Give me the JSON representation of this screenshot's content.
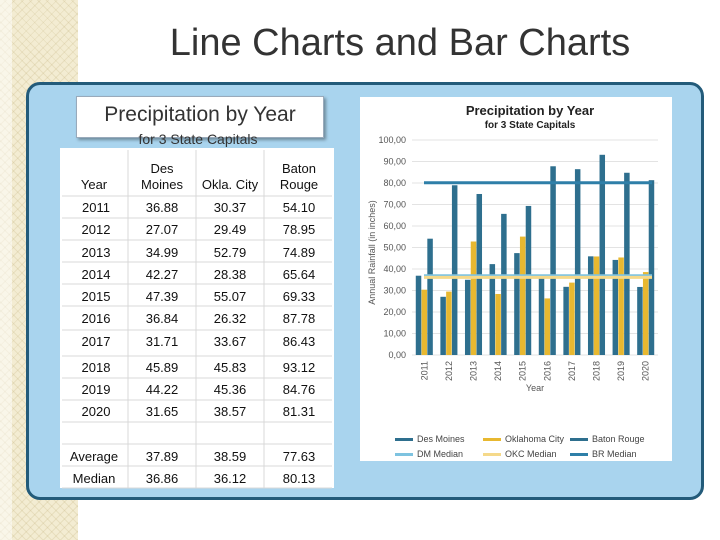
{
  "slide": {
    "title": "Line Charts and Bar Charts"
  },
  "table": {
    "title": "Precipitation by Year",
    "subtitle": "for 3 State Capitals",
    "headers": [
      "Year",
      "Des Moines",
      "Okla. City",
      "Baton Rouge"
    ],
    "rows": [
      [
        "2011",
        "36.88",
        "30.37",
        "54.10"
      ],
      [
        "2012",
        "27.07",
        "29.49",
        "78.95"
      ],
      [
        "2013",
        "34.99",
        "52.79",
        "74.89"
      ],
      [
        "2014",
        "42.27",
        "28.38",
        "65.64"
      ],
      [
        "2015",
        "47.39",
        "55.07",
        "69.33"
      ],
      [
        "2016",
        "36.84",
        "26.32",
        "87.78"
      ],
      [
        "2017",
        "31.71",
        "33.67",
        "86.43"
      ],
      [
        "2018",
        "45.89",
        "45.83",
        "93.12"
      ],
      [
        "2019",
        "44.22",
        "45.36",
        "84.76"
      ],
      [
        "2020",
        "31.65",
        "38.57",
        "81.31"
      ]
    ],
    "summary": [
      [
        "Average",
        "37.89",
        "38.59",
        "77.63"
      ],
      [
        "Median",
        "36.86",
        "36.12",
        "80.13"
      ]
    ]
  },
  "chart_data": {
    "type": "bar",
    "title": "Precipitation by Year",
    "subtitle": "for 3 State Capitals",
    "xlabel": "Year",
    "ylabel": "Annual Rainfall (in inches)",
    "ylim": [
      0,
      100
    ],
    "yticks": [
      "0,00",
      "10,00",
      "20,00",
      "30,00",
      "40,00",
      "50,00",
      "60,00",
      "70,00",
      "80,00",
      "90,00",
      "100,00"
    ],
    "categories": [
      "2011",
      "2012",
      "2013",
      "2014",
      "2015",
      "2016",
      "2017",
      "2018",
      "2019",
      "2020"
    ],
    "series": [
      {
        "name": "Des Moines",
        "color": "#2e6f8e",
        "values": [
          36.88,
          27.07,
          34.99,
          42.27,
          47.39,
          36.84,
          31.71,
          45.89,
          44.22,
          31.65
        ]
      },
      {
        "name": "Oklahoma City",
        "color": "#e8b830",
        "values": [
          30.37,
          29.49,
          52.79,
          28.38,
          55.07,
          26.32,
          33.67,
          45.83,
          45.36,
          38.57
        ]
      },
      {
        "name": "Baton Rouge",
        "color": "#2e6f8e",
        "values": [
          54.1,
          78.95,
          74.89,
          65.64,
          69.33,
          87.78,
          86.43,
          93.12,
          84.76,
          81.31
        ]
      }
    ],
    "medians": [
      {
        "name": "DM Median",
        "color": "#7ec3e0",
        "value": 36.86
      },
      {
        "name": "OKC Median",
        "color": "#f5d98a",
        "value": 36.12
      },
      {
        "name": "BR Median",
        "color": "#2e7fa8",
        "value": 80.13
      }
    ],
    "legend": "bottom"
  }
}
